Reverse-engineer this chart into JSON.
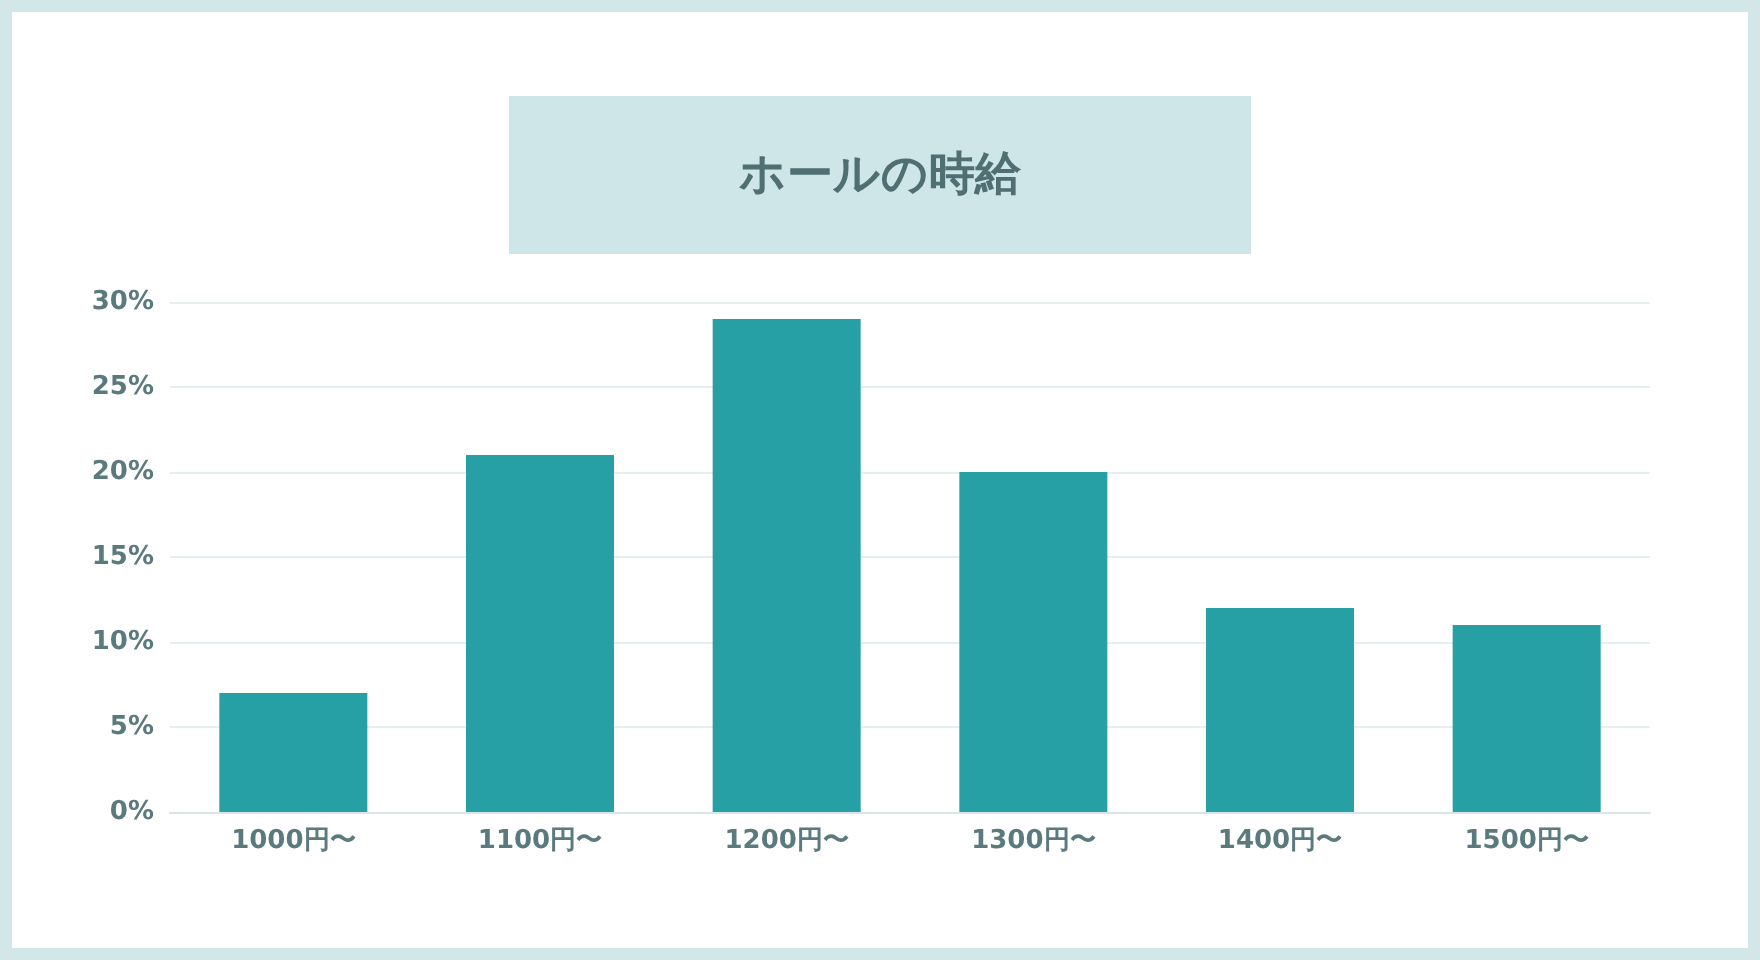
{
  "chart_data": {
    "type": "bar",
    "title": "ホールの時給",
    "categories": [
      "1000円〜",
      "1100円〜",
      "1200円〜",
      "1300円〜",
      "1400円〜",
      "1500円〜"
    ],
    "values": [
      7,
      21,
      29,
      20,
      12,
      11
    ],
    "color": "#26a0a4",
    "ylim": [
      0,
      30
    ],
    "yticks": [
      {
        "value": 0,
        "label": "0%"
      },
      {
        "value": 5,
        "label": "5%"
      },
      {
        "value": 10,
        "label": "10%"
      },
      {
        "value": 15,
        "label": "15%"
      },
      {
        "value": 20,
        "label": "20%"
      },
      {
        "value": 25,
        "label": "25%"
      },
      {
        "value": 30,
        "label": "30%"
      }
    ],
    "grid": "y"
  }
}
